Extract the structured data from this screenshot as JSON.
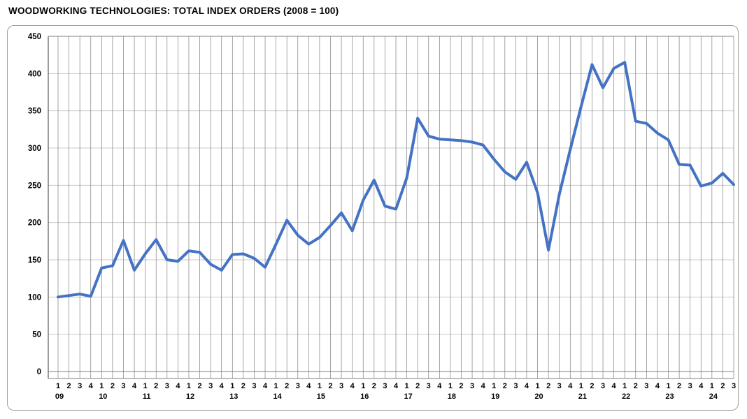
{
  "page_title": "WOODWORKING TECHNOLOGIES: TOTAL INDEX ORDERS (2008 = 100)",
  "chart_data": {
    "type": "line",
    "title": "WOODWORKING TECHNOLOGIES: TOTAL INDEX ORDERS (2008 = 100)",
    "ylabel": "",
    "xlabel": "",
    "ylim": [
      0,
      450
    ],
    "ytick_step": 50,
    "y_tick_labels": [
      "0",
      "50",
      "100",
      "150",
      "200",
      "250",
      "300",
      "350",
      "400",
      "450"
    ],
    "grid": {
      "horizontal_color": "#c9c9c9",
      "vertical_color": "#7f7f7f"
    },
    "legend_position": "none",
    "line_color": "#4472C4",
    "line_width": 4,
    "x_groups": [
      {
        "year": "09",
        "quarters": [
          "1",
          "2",
          "3",
          "4"
        ]
      },
      {
        "year": "10",
        "quarters": [
          "1",
          "2",
          "3",
          "4"
        ]
      },
      {
        "year": "11",
        "quarters": [
          "1",
          "2",
          "3",
          "4"
        ]
      },
      {
        "year": "12",
        "quarters": [
          "1",
          "2",
          "3",
          "4"
        ]
      },
      {
        "year": "13",
        "quarters": [
          "1",
          "2",
          "3",
          "4"
        ]
      },
      {
        "year": "14",
        "quarters": [
          "1",
          "2",
          "3",
          "4"
        ]
      },
      {
        "year": "15",
        "quarters": [
          "1",
          "2",
          "3",
          "4"
        ]
      },
      {
        "year": "16",
        "quarters": [
          "1",
          "2",
          "3",
          "4"
        ]
      },
      {
        "year": "17",
        "quarters": [
          "1",
          "2",
          "3",
          "4"
        ]
      },
      {
        "year": "18",
        "quarters": [
          "1",
          "2",
          "3",
          "4"
        ]
      },
      {
        "year": "19",
        "quarters": [
          "1",
          "2",
          "3",
          "4"
        ]
      },
      {
        "year": "20",
        "quarters": [
          "1",
          "2",
          "3",
          "4"
        ]
      },
      {
        "year": "21",
        "quarters": [
          "1",
          "2",
          "3",
          "4"
        ]
      },
      {
        "year": "22",
        "quarters": [
          "1",
          "2",
          "3",
          "4"
        ]
      },
      {
        "year": "23",
        "quarters": [
          "1",
          "2",
          "3",
          "4"
        ]
      },
      {
        "year": "24",
        "quarters": [
          "1",
          "2",
          "3"
        ]
      }
    ],
    "series": [
      {
        "name": "Total index orders (2008 = 100)",
        "color": "#4472C4",
        "values": [
          100,
          102,
          104,
          101,
          139,
          142,
          176,
          136,
          158,
          177,
          150,
          148,
          162,
          160,
          144,
          136,
          157,
          158,
          152,
          140,
          171,
          203,
          183,
          171,
          180,
          196,
          213,
          189,
          230,
          257,
          222,
          218,
          260,
          340,
          316,
          312,
          311,
          310,
          308,
          304,
          285,
          268,
          258,
          281,
          240,
          163,
          238,
          298,
          356,
          412,
          381,
          407,
          415,
          336,
          333,
          320,
          311,
          278,
          277,
          249,
          253,
          266,
          251
        ]
      }
    ]
  }
}
